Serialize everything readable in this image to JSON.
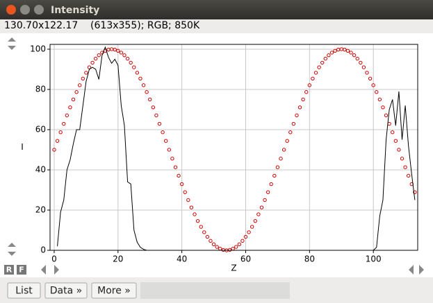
{
  "window": {
    "title": "Intensity",
    "info": "130.70x122.17    (613x355); RGB; 850K"
  },
  "buttons": {
    "list": "List",
    "data": "Data »",
    "more": "More »",
    "r": "R",
    "f": "F"
  },
  "chart_data": {
    "type": "line",
    "xlabel": "Z",
    "ylabel": "I",
    "x": [
      0,
      1,
      2,
      3,
      4,
      5,
      6,
      7,
      8,
      9,
      10,
      11,
      12,
      13,
      14,
      15,
      16,
      17,
      18,
      19,
      20,
      21,
      22,
      23,
      24,
      25,
      26,
      27,
      28,
      29,
      30,
      31,
      32,
      33,
      34,
      35,
      36,
      37,
      38,
      39,
      40,
      41,
      42,
      43,
      44,
      45,
      46,
      47,
      48,
      49,
      50,
      51,
      52,
      53,
      54,
      55,
      56,
      57,
      58,
      59,
      60,
      61,
      62,
      63,
      64,
      65,
      66,
      67,
      68,
      69,
      70,
      71,
      72,
      73,
      74,
      75,
      76,
      77,
      78,
      79,
      80,
      81,
      82,
      83,
      84,
      85,
      86,
      87,
      88,
      89,
      90,
      91,
      92,
      93,
      94,
      95,
      96,
      97,
      98,
      99,
      100,
      101,
      102,
      103,
      104,
      105,
      106,
      107,
      108,
      109,
      110,
      111,
      112,
      113
    ],
    "series": [
      {
        "color": "#cc0000",
        "mode": "markers",
        "values": [
          50,
          54.4,
          58.7,
          62.9,
          67.1,
          71.1,
          75,
          78.7,
          82.1,
          85.4,
          88.3,
          91,
          93.3,
          95.3,
          97,
          98.3,
          99.2,
          99.8,
          100,
          99.8,
          99.2,
          98.3,
          97,
          95.3,
          93.3,
          91,
          88.3,
          85.4,
          82.1,
          78.7,
          75,
          71.1,
          67.1,
          62.9,
          58.7,
          54.4,
          50,
          45.6,
          41.3,
          37.1,
          32.9,
          28.9,
          25,
          21.3,
          17.9,
          14.6,
          11.7,
          9,
          6.7,
          4.7,
          3,
          1.7,
          0.8,
          0.2,
          0,
          0.2,
          0.8,
          1.7,
          3,
          4.7,
          6.7,
          9,
          11.7,
          14.6,
          17.9,
          21.3,
          25,
          28.9,
          32.9,
          37.1,
          41.3,
          45.6,
          50,
          54.4,
          58.7,
          62.9,
          67.1,
          71.1,
          75,
          78.7,
          82.1,
          85.4,
          88.3,
          91,
          93.3,
          95.3,
          97,
          98.3,
          99.2,
          99.8,
          100,
          99.8,
          99.2,
          98.3,
          97,
          95.3,
          93.3,
          91,
          88.3,
          85.4,
          82.1,
          78.7,
          75,
          71.1,
          67.1,
          62.9,
          58.7,
          54.4,
          50,
          45.6,
          41.3,
          37.1,
          32.9,
          28.9
        ]
      },
      {
        "color": "#000000",
        "mode": "lines",
        "values": [
          null,
          2,
          19,
          25,
          40,
          45,
          53,
          60,
          60,
          72,
          84,
          90,
          91,
          90,
          85,
          97,
          101,
          96,
          93,
          95,
          92,
          72,
          62,
          34,
          33,
          10,
          4,
          1.5,
          0.5,
          0,
          0,
          0,
          0,
          0,
          0,
          0,
          0,
          0,
          0,
          0,
          0,
          0,
          0,
          0,
          0,
          0,
          0,
          0,
          0,
          0,
          0,
          0,
          0,
          0,
          0,
          0,
          0,
          0,
          0,
          0,
          0,
          0,
          0,
          0,
          0,
          0,
          0,
          0,
          0,
          0,
          0,
          0,
          0,
          0,
          0,
          0,
          0,
          0,
          0,
          0,
          0,
          0,
          0,
          0,
          0,
          0,
          0,
          0,
          0,
          0,
          0,
          0,
          0,
          0,
          0,
          0,
          0,
          0,
          0,
          0,
          0,
          1.5,
          17,
          25,
          55,
          70,
          75,
          62,
          79,
          55,
          72,
          52,
          38,
          25
        ]
      }
    ],
    "xlim": [
      -1.3,
      113.9
    ],
    "ylim": [
      0,
      102.4
    ],
    "xticks": [
      0,
      20,
      40,
      60,
      80,
      100
    ],
    "yticks": [
      0,
      20,
      40,
      60,
      80,
      100
    ],
    "grid": true
  }
}
